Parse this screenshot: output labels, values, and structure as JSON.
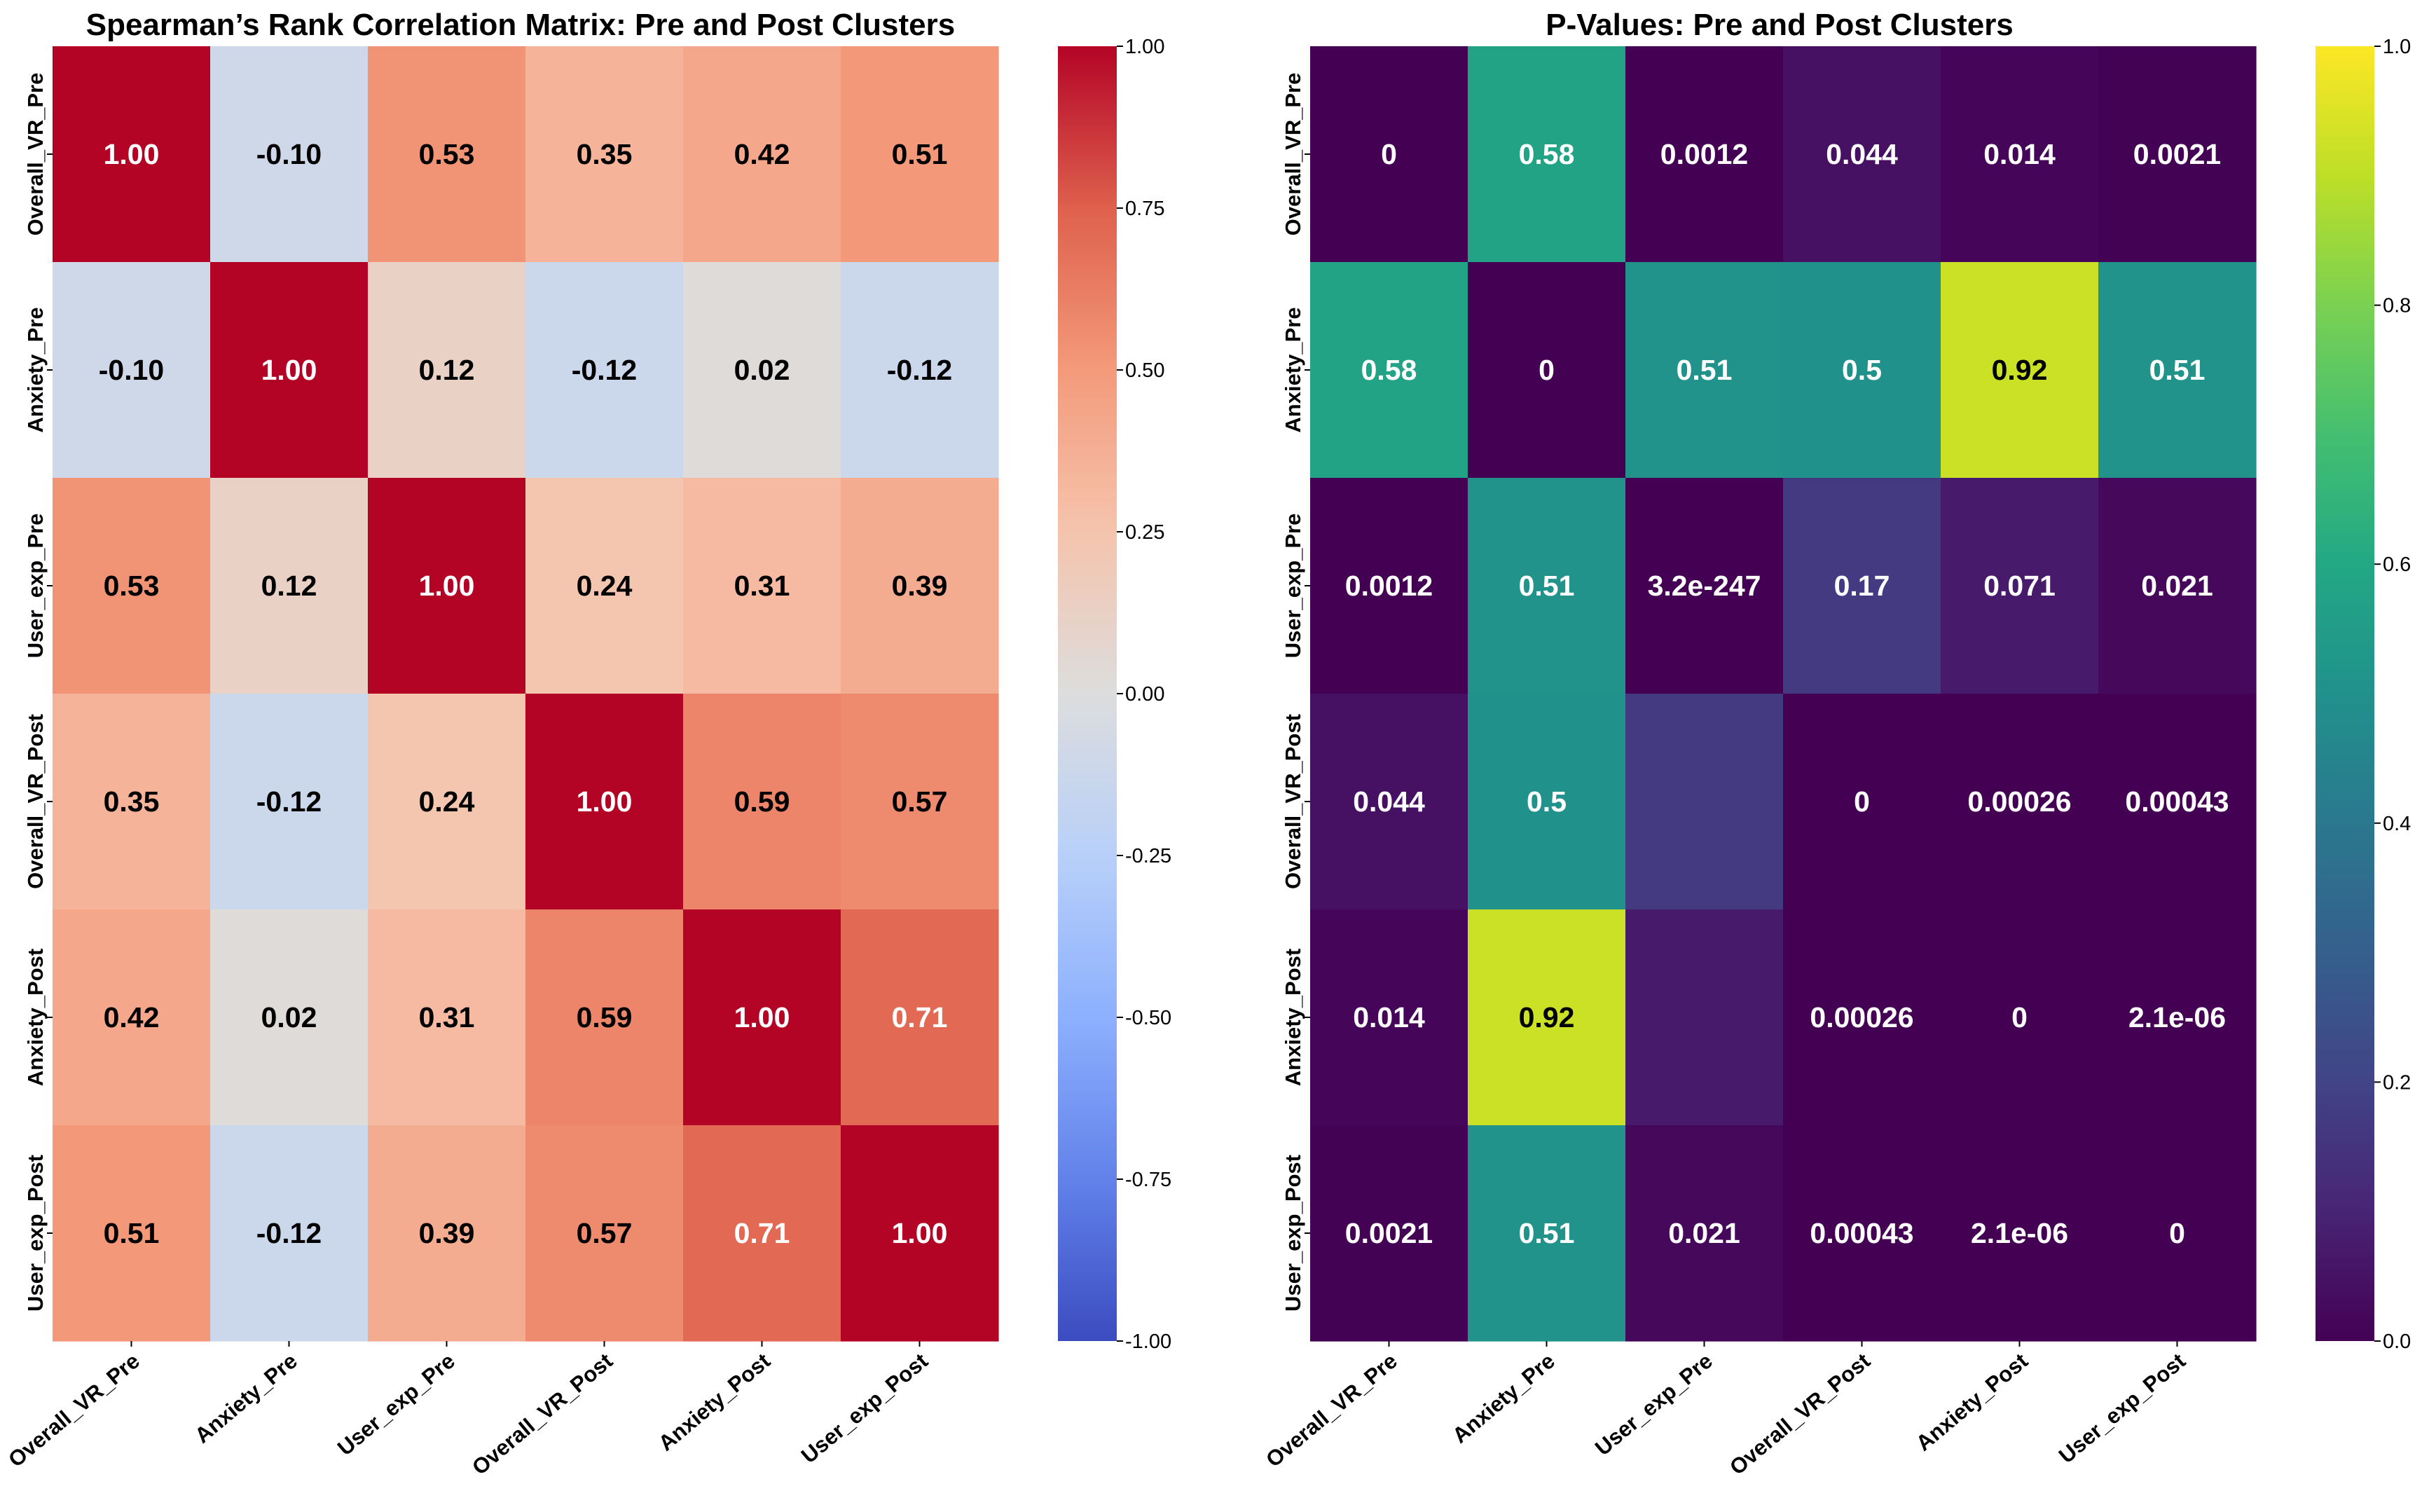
{
  "chart_data": [
    {
      "type": "heatmap",
      "title": "Spearman’s Rank Correlation Matrix: Pre and Post Clusters",
      "xlabel": "",
      "ylabel": "",
      "x_categories": [
        "Overall_VR_Pre",
        "Anxiety_Pre",
        "User_exp_Pre",
        "Overall_VR_Post",
        "Anxiety_Post",
        "User_exp_Post"
      ],
      "y_categories": [
        "Overall_VR_Pre",
        "Anxiety_Pre",
        "User_exp_Pre",
        "Overall_VR_Post",
        "Anxiety_Post",
        "User_exp_Post"
      ],
      "values": [
        [
          1.0,
          -0.1,
          0.53,
          0.35,
          0.42,
          0.51
        ],
        [
          -0.1,
          1.0,
          0.12,
          -0.12,
          0.02,
          -0.12
        ],
        [
          0.53,
          0.12,
          1.0,
          0.24,
          0.31,
          0.39
        ],
        [
          0.35,
          -0.12,
          0.24,
          1.0,
          0.59,
          0.57
        ],
        [
          0.42,
          0.02,
          0.31,
          0.59,
          1.0,
          0.71
        ],
        [
          0.51,
          -0.12,
          0.39,
          0.57,
          0.71,
          1.0
        ]
      ],
      "annotations": [
        [
          "1.00",
          "-0.10",
          "0.53",
          "0.35",
          "0.42",
          "0.51"
        ],
        [
          "-0.10",
          "1.00",
          "0.12",
          "-0.12",
          "0.02",
          "-0.12"
        ],
        [
          "0.53",
          "0.12",
          "1.00",
          "0.24",
          "0.31",
          "0.39"
        ],
        [
          "0.35",
          "-0.12",
          "0.24",
          "1.00",
          "0.59",
          "0.57"
        ],
        [
          "0.42",
          "0.02",
          "0.31",
          "0.59",
          "1.00",
          "0.71"
        ],
        [
          "0.51",
          "-0.12",
          "0.39",
          "0.57",
          "0.71",
          "1.00"
        ]
      ],
      "colormap": "coolwarm",
      "colorbar": {
        "range": [
          -1.0,
          1.0
        ],
        "ticks": [
          1.0,
          0.75,
          0.5,
          0.25,
          0.0,
          -0.25,
          -0.5,
          -0.75,
          -1.0
        ],
        "tick_labels": [
          "1.00",
          "0.75",
          "0.50",
          "0.25",
          "0.00",
          "-0.25",
          "-0.50",
          "-0.75",
          "-1.00"
        ]
      }
    },
    {
      "type": "heatmap",
      "title": "P-Values: Pre and Post Clusters",
      "xlabel": "",
      "ylabel": "",
      "x_categories": [
        "Overall_VR_Pre",
        "Anxiety_Pre",
        "User_exp_Pre",
        "Overall_VR_Post",
        "Anxiety_Post",
        "User_exp_Post"
      ],
      "y_categories": [
        "Overall_VR_Pre",
        "Anxiety_Pre",
        "User_exp_Pre",
        "Overall_VR_Post",
        "Anxiety_Post",
        "User_exp_Post"
      ],
      "values": [
        [
          0,
          0.58,
          0.0012,
          0.044,
          0.014,
          0.0021
        ],
        [
          0.58,
          0,
          0.51,
          0.5,
          0.92,
          0.51
        ],
        [
          0.0012,
          0.51,
          3.2e-247,
          0.17,
          0.071,
          0.021
        ],
        [
          0.044,
          0.5,
          0.17,
          0,
          0.00026,
          0.00043
        ],
        [
          0.014,
          0.92,
          0.071,
          0.00026,
          0,
          2.1e-06
        ],
        [
          0.0021,
          0.51,
          0.021,
          0.00043,
          2.1e-06,
          0
        ]
      ],
      "annotations": [
        [
          "0",
          "0.58",
          "0.0012",
          "0.044",
          "0.014",
          "0.0021"
        ],
        [
          "0.58",
          "0",
          "0.51",
          "0.5",
          "0.92",
          "0.51"
        ],
        [
          "0.0012",
          "0.51",
          "3.2e-247",
          "0.17",
          "0.071",
          "0.021"
        ],
        [
          "0.044",
          "0.5",
          "",
          "0",
          "0.00026",
          "0.00043"
        ],
        [
          "0.014",
          "0.92",
          "",
          "0.00026",
          "0",
          "2.1e-06"
        ],
        [
          "0.0021",
          "0.51",
          "0.021",
          "0.00043",
          "2.1e-06",
          "0"
        ]
      ],
      "colormap": "viridis",
      "colorbar": {
        "range": [
          0.0,
          1.0
        ],
        "ticks": [
          1.0,
          0.8,
          0.6,
          0.4,
          0.2,
          0.0
        ],
        "tick_labels": [
          "1.0",
          "0.8",
          "0.6",
          "0.4",
          "0.2",
          "0.0"
        ]
      }
    }
  ]
}
